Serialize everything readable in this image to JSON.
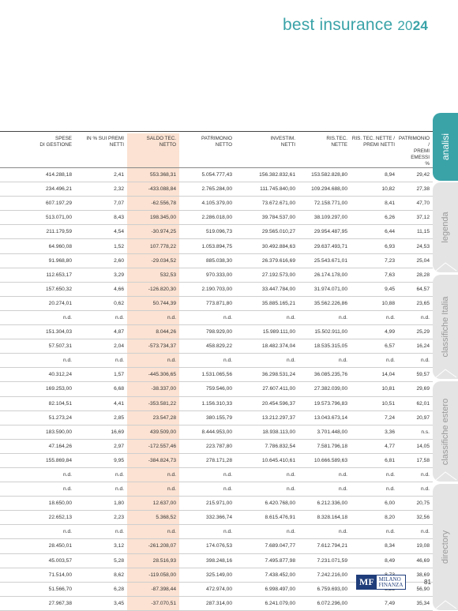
{
  "header": {
    "title_main": "best insurance ",
    "year_light": "20",
    "year_bold": "24"
  },
  "table": {
    "columns": [
      "SPESE DI GESTIONE",
      "IN % SUI PREMI NETTI",
      "SALDO TEC. NETTO",
      "PATRIMONIO NETTO",
      "INVESTIM. NETTI",
      "RIS.TEC. NETTE",
      "RIS. TEC. NETTE / PREMI NETTI",
      "PATRIMONIO / PREMI EMESSI %"
    ],
    "columns_lines": [
      [
        "SPESE",
        "DI GESTIONE"
      ],
      [
        "IN % SUI PREMI",
        "NETTI"
      ],
      [
        "SALDO TEC.",
        "NETTO"
      ],
      [
        "PATRIMONIO",
        "NETTO"
      ],
      [
        "INVESTIM.",
        "NETTI"
      ],
      [
        "RIS.TEC.",
        "NETTE"
      ],
      [
        "RIS. TEC. NETTE /",
        "PREMI NETTI"
      ],
      [
        "PATRIMONIO /",
        "PREMI EMESSI",
        "%"
      ]
    ],
    "rows": [
      [
        "414.288,18",
        "2,41",
        "553.368,31",
        "5.054.777,43",
        "156.382.832,61",
        "153.582.828,80",
        "8,94",
        "29,42"
      ],
      [
        "234.496,21",
        "2,32",
        "-433.088,84",
        "2.765.284,00",
        "111.745.840,00",
        "109.294.688,00",
        "10,82",
        "27,38"
      ],
      [
        "607.197,29",
        "7,07",
        "-62.556,78",
        "4.105.379,00",
        "73.672.671,00",
        "72.158.771,00",
        "8,41",
        "47,70"
      ],
      [
        "513.071,00",
        "8,43",
        "198.345,00",
        "2.286.018,00",
        "39.784.537,00",
        "38.109.297,00",
        "6,26",
        "37,12"
      ],
      [
        "211.179,59",
        "4,54",
        "-30.974,25",
        "519.096,73",
        "29.565.010,27",
        "29.954.487,95",
        "6,44",
        "11,15"
      ],
      [
        "64.960,08",
        "1,52",
        "107.778,22",
        "1.053.894,75",
        "30.492.884,63",
        "29.637.493,71",
        "6,93",
        "24,53"
      ],
      [
        "91.968,80",
        "2,60",
        "-29.034,52",
        "885.038,30",
        "26.379.616,69",
        "25.543.671,01",
        "7,23",
        "25,04"
      ],
      [
        "112.653,17",
        "3,29",
        "532,53",
        "970.333,00",
        "27.192.573,00",
        "26.174.178,00",
        "7,63",
        "28,28"
      ],
      [
        "157.650,32",
        "4,66",
        "-126.820,30",
        "2.190.703,00",
        "33.447.784,00",
        "31.974.071,00",
        "9,45",
        "64,57"
      ],
      [
        "20.274,01",
        "0,62",
        "50.744,39",
        "773.871,80",
        "35.885.165,21",
        "35.562.226,86",
        "10,88",
        "23,65"
      ],
      [
        "n.d.",
        "n.d.",
        "n.d.",
        "n.d.",
        "n.d.",
        "n.d.",
        "n.d.",
        "n.d."
      ],
      [
        "151.304,03",
        "4,87",
        "8.044,26",
        "798.929,00",
        "15.989.111,00",
        "15.502.911,00",
        "4,99",
        "25,29"
      ],
      [
        "57.507,31",
        "2,04",
        "-573.734,37",
        "458.829,22",
        "18.482.374,04",
        "18.535.315,05",
        "6,57",
        "16,24"
      ],
      [
        "n.d.",
        "n.d.",
        "n.d.",
        "n.d.",
        "n.d.",
        "n.d.",
        "n.d.",
        "n.d."
      ],
      [
        "40.312,24",
        "1,57",
        "-445.306,65",
        "1.531.065,56",
        "36.298.531,24",
        "36.085.235,76",
        "14,04",
        "59,57"
      ],
      [
        "169.253,00",
        "6,68",
        "-38.337,00",
        "759.546,00",
        "27.607.411,00",
        "27.382.039,00",
        "10,81",
        "29,69"
      ],
      [
        "82.104,51",
        "4,41",
        "-353.581,22",
        "1.156.310,33",
        "20.454.596,37",
        "19.573.796,83",
        "10,51",
        "62,01"
      ],
      [
        "51.273,24",
        "2,85",
        "23.547,28",
        "380.155,79",
        "13.212.297,37",
        "13.043.673,14",
        "7,24",
        "20,97"
      ],
      [
        "183.590,00",
        "16,69",
        "439.509,00",
        "8.444.953,00",
        "18.938.113,00",
        "3.701.448,00",
        "3,36",
        "n.s."
      ],
      [
        "47.164,26",
        "2,97",
        "-172.557,46",
        "223.787,80",
        "7.786.832,54",
        "7.581.796,18",
        "4,77",
        "14,05"
      ],
      [
        "155.869,84",
        "9,95",
        "-384.824,73",
        "278.171,28",
        "10.645.410,61",
        "10.666.589,63",
        "6,81",
        "17,58"
      ],
      [
        "n.d.",
        "n.d.",
        "n.d.",
        "n.d.",
        "n.d.",
        "n.d.",
        "n.d.",
        "n.d."
      ],
      [
        "n.d.",
        "n.d.",
        "n.d.",
        "n.d.",
        "n.d.",
        "n.d.",
        "n.d.",
        "n.d."
      ],
      [
        "18.650,00",
        "1,80",
        "12.637,00",
        "215.971,00",
        "6.420.768,00",
        "6.212.336,00",
        "6,00",
        "20,75"
      ],
      [
        "22.652,13",
        "2,23",
        "5.368,52",
        "332.366,74",
        "8.615.476,91",
        "8.328.164,18",
        "8,20",
        "32,56"
      ],
      [
        "n.d.",
        "n.d.",
        "n.d.",
        "n.d.",
        "n.d.",
        "n.d.",
        "n.d.",
        "n.d."
      ],
      [
        "28.450,01",
        "3,12",
        "-261.208,07",
        "174.076,53",
        "7.689.047,77",
        "7.612.794,21",
        "8,34",
        "19,08"
      ],
      [
        "45.003,57",
        "5,28",
        "28.516,93",
        "398.248,16",
        "7.495.877,98",
        "7.231.071,59",
        "8,49",
        "46,69"
      ],
      [
        "71.514,00",
        "8,62",
        "-119.058,00",
        "325.149,00",
        "7.438.452,00",
        "7.242.216,00",
        "8,73",
        "38,69"
      ],
      [
        "51.566,70",
        "6,28",
        "-87.398,44",
        "472.974,00",
        "6.998.497,00",
        "6.759.693,00",
        "8,23",
        "56,90"
      ],
      [
        "27.967,38",
        "3,45",
        "-37.070,51",
        "287.314,00",
        "6.241.079,00",
        "6.072.296,00",
        "7,49",
        "35,34"
      ]
    ],
    "highlight_color": "#fbe2d2"
  },
  "side_tabs": [
    {
      "label": "analisi",
      "active": true
    },
    {
      "label": "legenda",
      "active": false
    },
    {
      "label": "classifiche Italia",
      "active": false
    },
    {
      "label": "classifiche estero",
      "active": false
    },
    {
      "label": "directory",
      "active": false
    }
  ],
  "footer": {
    "logo_mf": "MF",
    "logo_line1": "MILANO",
    "logo_line2": "FINANZA",
    "page_number": "81"
  },
  "colors": {
    "accent": "#3aa3a8",
    "tab_inactive": "#e4e4e4",
    "logo_blue": "#1f3d7a"
  }
}
